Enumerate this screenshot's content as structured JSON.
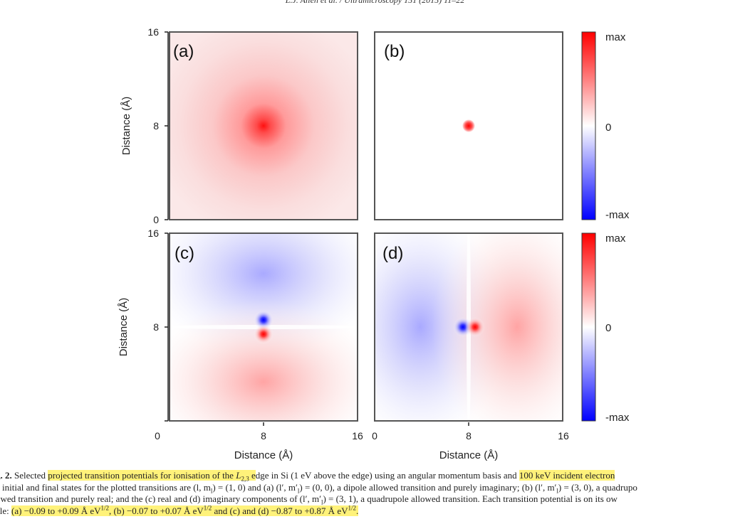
{
  "header": {
    "running_head": "L.J. Allen et al. / Ultramicroscopy 151 (2015) 11–22"
  },
  "figure": {
    "panels": [
      {
        "label": "(a)"
      },
      {
        "label": "(b)"
      },
      {
        "label": "(c)"
      },
      {
        "label": "(d)"
      }
    ],
    "y_axis_label": "Distance (Å)",
    "x_axis_label": "Distance (Å)",
    "y_ticks": [
      "0",
      "8",
      "16"
    ],
    "x_ticks": [
      "0",
      "8",
      "16"
    ],
    "colorbar": {
      "max_label": "max",
      "zero_label": "0",
      "min_label": "-max",
      "colors": [
        "#ff0000",
        "#ffffff",
        "#0000ff"
      ]
    }
  },
  "caption": {
    "l1_a": "g. 2.",
    "l1_b": " Selected ",
    "l1_hl1": "projected transition potentials for ionisation of the ",
    "l1_L": "L",
    "l1_Lsub": "2,3",
    "l1_hl1b": " e",
    "l1_c": "dge in Si (1 eV above the edge) using an angular momentum basis and ",
    "l1_hl2": "100 keV incident electron",
    "l2": "e initial and final states for the plotted transitions are (l, m",
    "l2_sub": "l",
    "l2_b": ") = (1, 0) and (a) (l′, m′",
    "l2_b_sub": "l",
    "l2_c": ") = (0, 0), a dipole allowed transition and purely imaginary; (b) (l′, m′",
    "l2_c_sub": "l",
    "l2_d": ") = (3, 0), a quadrupo",
    "l3": "owed transition and purely real; and the (c) real and (d) imaginary components of (l′, m′",
    "l3_sub": "l",
    "l3_b": ") = (3, 1), a quadrupole allowed transition. Each transition potential is on its ow",
    "l4_a": "ale: ",
    "l4_hl_a": "(a) −0.09 to +0.09 Å eV",
    "l4_hl_a_sup": "1/2",
    "l4_hl_b": ", (b) −0.07 to +0.07 Å eV",
    "l4_hl_b_sup": "1/2",
    "l4_hl_c": " and (c) and (d) −0.87 to +0.87 Å eV",
    "l4_hl_c_sup": "1/2",
    "l4_hl_d": "."
  }
}
